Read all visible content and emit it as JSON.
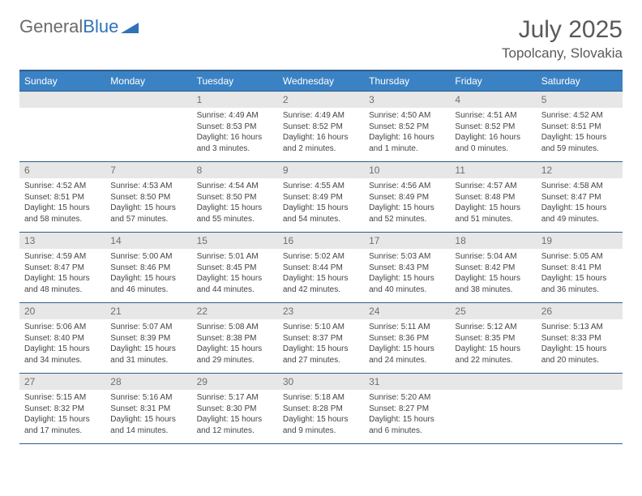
{
  "logo": {
    "text1": "General",
    "text2": "Blue"
  },
  "title": "July 2025",
  "location": "Topolcany, Slovakia",
  "weekdays": [
    "Sunday",
    "Monday",
    "Tuesday",
    "Wednesday",
    "Thursday",
    "Friday",
    "Saturday"
  ],
  "colors": {
    "header_bg": "#3b82c4",
    "header_border": "#2f5d8a",
    "daynum_bg": "#e7e7e7",
    "text": "#444444",
    "title_text": "#595959"
  },
  "cells": [
    {
      "day": "",
      "lines": []
    },
    {
      "day": "",
      "lines": []
    },
    {
      "day": "1",
      "lines": [
        "Sunrise: 4:49 AM",
        "Sunset: 8:53 PM",
        "Daylight: 16 hours",
        "and 3 minutes."
      ]
    },
    {
      "day": "2",
      "lines": [
        "Sunrise: 4:49 AM",
        "Sunset: 8:52 PM",
        "Daylight: 16 hours",
        "and 2 minutes."
      ]
    },
    {
      "day": "3",
      "lines": [
        "Sunrise: 4:50 AM",
        "Sunset: 8:52 PM",
        "Daylight: 16 hours",
        "and 1 minute."
      ]
    },
    {
      "day": "4",
      "lines": [
        "Sunrise: 4:51 AM",
        "Sunset: 8:52 PM",
        "Daylight: 16 hours",
        "and 0 minutes."
      ]
    },
    {
      "day": "5",
      "lines": [
        "Sunrise: 4:52 AM",
        "Sunset: 8:51 PM",
        "Daylight: 15 hours",
        "and 59 minutes."
      ]
    },
    {
      "day": "6",
      "lines": [
        "Sunrise: 4:52 AM",
        "Sunset: 8:51 PM",
        "Daylight: 15 hours",
        "and 58 minutes."
      ]
    },
    {
      "day": "7",
      "lines": [
        "Sunrise: 4:53 AM",
        "Sunset: 8:50 PM",
        "Daylight: 15 hours",
        "and 57 minutes."
      ]
    },
    {
      "day": "8",
      "lines": [
        "Sunrise: 4:54 AM",
        "Sunset: 8:50 PM",
        "Daylight: 15 hours",
        "and 55 minutes."
      ]
    },
    {
      "day": "9",
      "lines": [
        "Sunrise: 4:55 AM",
        "Sunset: 8:49 PM",
        "Daylight: 15 hours",
        "and 54 minutes."
      ]
    },
    {
      "day": "10",
      "lines": [
        "Sunrise: 4:56 AM",
        "Sunset: 8:49 PM",
        "Daylight: 15 hours",
        "and 52 minutes."
      ]
    },
    {
      "day": "11",
      "lines": [
        "Sunrise: 4:57 AM",
        "Sunset: 8:48 PM",
        "Daylight: 15 hours",
        "and 51 minutes."
      ]
    },
    {
      "day": "12",
      "lines": [
        "Sunrise: 4:58 AM",
        "Sunset: 8:47 PM",
        "Daylight: 15 hours",
        "and 49 minutes."
      ]
    },
    {
      "day": "13",
      "lines": [
        "Sunrise: 4:59 AM",
        "Sunset: 8:47 PM",
        "Daylight: 15 hours",
        "and 48 minutes."
      ]
    },
    {
      "day": "14",
      "lines": [
        "Sunrise: 5:00 AM",
        "Sunset: 8:46 PM",
        "Daylight: 15 hours",
        "and 46 minutes."
      ]
    },
    {
      "day": "15",
      "lines": [
        "Sunrise: 5:01 AM",
        "Sunset: 8:45 PM",
        "Daylight: 15 hours",
        "and 44 minutes."
      ]
    },
    {
      "day": "16",
      "lines": [
        "Sunrise: 5:02 AM",
        "Sunset: 8:44 PM",
        "Daylight: 15 hours",
        "and 42 minutes."
      ]
    },
    {
      "day": "17",
      "lines": [
        "Sunrise: 5:03 AM",
        "Sunset: 8:43 PM",
        "Daylight: 15 hours",
        "and 40 minutes."
      ]
    },
    {
      "day": "18",
      "lines": [
        "Sunrise: 5:04 AM",
        "Sunset: 8:42 PM",
        "Daylight: 15 hours",
        "and 38 minutes."
      ]
    },
    {
      "day": "19",
      "lines": [
        "Sunrise: 5:05 AM",
        "Sunset: 8:41 PM",
        "Daylight: 15 hours",
        "and 36 minutes."
      ]
    },
    {
      "day": "20",
      "lines": [
        "Sunrise: 5:06 AM",
        "Sunset: 8:40 PM",
        "Daylight: 15 hours",
        "and 34 minutes."
      ]
    },
    {
      "day": "21",
      "lines": [
        "Sunrise: 5:07 AM",
        "Sunset: 8:39 PM",
        "Daylight: 15 hours",
        "and 31 minutes."
      ]
    },
    {
      "day": "22",
      "lines": [
        "Sunrise: 5:08 AM",
        "Sunset: 8:38 PM",
        "Daylight: 15 hours",
        "and 29 minutes."
      ]
    },
    {
      "day": "23",
      "lines": [
        "Sunrise: 5:10 AM",
        "Sunset: 8:37 PM",
        "Daylight: 15 hours",
        "and 27 minutes."
      ]
    },
    {
      "day": "24",
      "lines": [
        "Sunrise: 5:11 AM",
        "Sunset: 8:36 PM",
        "Daylight: 15 hours",
        "and 24 minutes."
      ]
    },
    {
      "day": "25",
      "lines": [
        "Sunrise: 5:12 AM",
        "Sunset: 8:35 PM",
        "Daylight: 15 hours",
        "and 22 minutes."
      ]
    },
    {
      "day": "26",
      "lines": [
        "Sunrise: 5:13 AM",
        "Sunset: 8:33 PM",
        "Daylight: 15 hours",
        "and 20 minutes."
      ]
    },
    {
      "day": "27",
      "lines": [
        "Sunrise: 5:15 AM",
        "Sunset: 8:32 PM",
        "Daylight: 15 hours",
        "and 17 minutes."
      ]
    },
    {
      "day": "28",
      "lines": [
        "Sunrise: 5:16 AM",
        "Sunset: 8:31 PM",
        "Daylight: 15 hours",
        "and 14 minutes."
      ]
    },
    {
      "day": "29",
      "lines": [
        "Sunrise: 5:17 AM",
        "Sunset: 8:30 PM",
        "Daylight: 15 hours",
        "and 12 minutes."
      ]
    },
    {
      "day": "30",
      "lines": [
        "Sunrise: 5:18 AM",
        "Sunset: 8:28 PM",
        "Daylight: 15 hours",
        "and 9 minutes."
      ]
    },
    {
      "day": "31",
      "lines": [
        "Sunrise: 5:20 AM",
        "Sunset: 8:27 PM",
        "Daylight: 15 hours",
        "and 6 minutes."
      ]
    },
    {
      "day": "",
      "lines": []
    },
    {
      "day": "",
      "lines": []
    }
  ]
}
